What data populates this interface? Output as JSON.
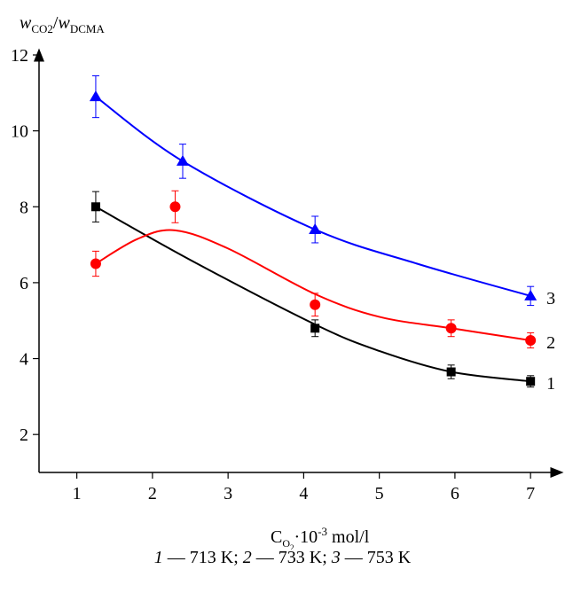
{
  "chart_data": {
    "type": "scatter",
    "ylabel": {
      "italic_1": "w",
      "sub_1": "CO2",
      "sep": "/",
      "italic_2": "w",
      "sub_2": "DCMA"
    },
    "xlabel": {
      "base": "C",
      "sub": "O",
      "subsub": "2",
      "mult": "·10",
      "exp": "-3",
      "unit": " mol/l"
    },
    "xlim": [
      0.5,
      7.35
    ],
    "ylim": [
      1.0,
      12.0
    ],
    "xticks": [
      "1",
      "2",
      "3",
      "4",
      "5",
      "6",
      "7"
    ],
    "xtick_values": [
      1,
      2,
      3,
      4,
      5,
      6,
      7
    ],
    "yticks": [
      "2",
      "4",
      "6",
      "8",
      "10",
      "12"
    ],
    "ytick_values": [
      2,
      4,
      6,
      8,
      10,
      12
    ],
    "grid": false,
    "series": [
      {
        "name": "1",
        "color": "#000000",
        "marker": "square",
        "points": [
          {
            "x": 1.25,
            "y": 8.0,
            "err": 0.4
          },
          {
            "x": 4.15,
            "y": 4.8,
            "err": 0.22
          },
          {
            "x": 5.95,
            "y": 3.65,
            "err": 0.18
          },
          {
            "x": 7.0,
            "y": 3.4,
            "err": 0.15
          }
        ],
        "curve": [
          [
            1.25,
            8.0
          ],
          [
            2.5,
            6.6
          ],
          [
            4.15,
            4.9
          ],
          [
            5.0,
            4.2
          ],
          [
            5.95,
            3.65
          ],
          [
            7.0,
            3.4
          ]
        ]
      },
      {
        "name": "2",
        "color": "#ff0000",
        "marker": "circle",
        "points": [
          {
            "x": 1.25,
            "y": 6.5,
            "err": 0.33
          },
          {
            "x": 2.3,
            "y": 8.0,
            "err": 0.42
          },
          {
            "x": 4.15,
            "y": 5.42,
            "err": 0.3
          },
          {
            "x": 5.95,
            "y": 4.8,
            "err": 0.22
          },
          {
            "x": 7.0,
            "y": 4.48,
            "err": 0.2
          }
        ],
        "curve": [
          [
            1.25,
            6.5
          ],
          [
            1.8,
            7.15
          ],
          [
            2.3,
            7.38
          ],
          [
            3.0,
            6.9
          ],
          [
            4.15,
            5.7
          ],
          [
            5.0,
            5.1
          ],
          [
            5.95,
            4.8
          ],
          [
            7.0,
            4.48
          ]
        ]
      },
      {
        "name": "3",
        "color": "#0000ff",
        "marker": "triangle",
        "points": [
          {
            "x": 1.25,
            "y": 10.9,
            "err": 0.55
          },
          {
            "x": 2.4,
            "y": 9.2,
            "err": 0.45
          },
          {
            "x": 4.15,
            "y": 7.4,
            "err": 0.35
          },
          {
            "x": 7.0,
            "y": 5.65,
            "err": 0.25
          }
        ],
        "curve": [
          [
            1.25,
            10.9
          ],
          [
            2.4,
            9.2
          ],
          [
            4.15,
            7.4
          ],
          [
            5.5,
            6.5
          ],
          [
            7.0,
            5.65
          ]
        ]
      }
    ]
  },
  "caption": {
    "n1": "1",
    "t1": " — 713 K; ",
    "n2": "2",
    "t2": " — 733 K; ",
    "n3": "3",
    "t3": " — 753 K"
  }
}
